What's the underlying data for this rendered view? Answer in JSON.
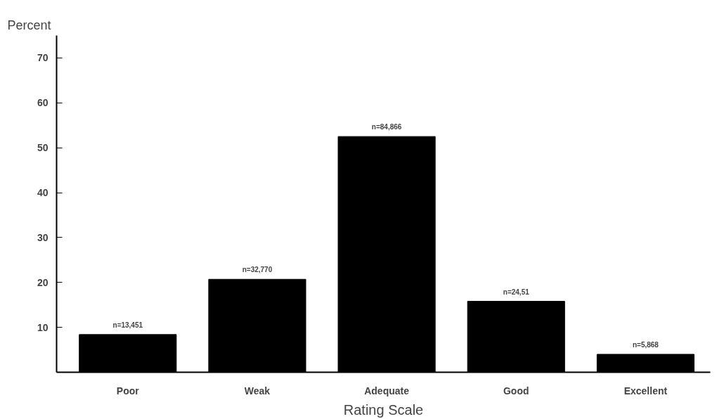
{
  "chart_data": {
    "type": "bar",
    "ylabel": "Percent",
    "xlabel": "Rating Scale",
    "categories": [
      "Poor",
      "Weak",
      "Adequate",
      "Good",
      "Excellent"
    ],
    "values": [
      8.4,
      20.7,
      52.5,
      15.8,
      4.0
    ],
    "annotations": [
      {
        "text": "n=13,451",
        "x": "Poor",
        "y": 8.4
      },
      {
        "text": "n=32,770",
        "x": "Weak",
        "y": 20.7
      },
      {
        "text": "n=84,866",
        "x": "Adequate",
        "y": 52.5
      },
      {
        "text": "n=24,51",
        "x": "Good",
        "y": 15.8
      },
      {
        "text": "n=5,868",
        "x": "Excellent",
        "y": 4.0
      }
    ],
    "color": "#000000",
    "ylim": [
      0,
      75
    ],
    "yticks": [
      10,
      20,
      30,
      40,
      50,
      60,
      70
    ],
    "grid": false
  }
}
